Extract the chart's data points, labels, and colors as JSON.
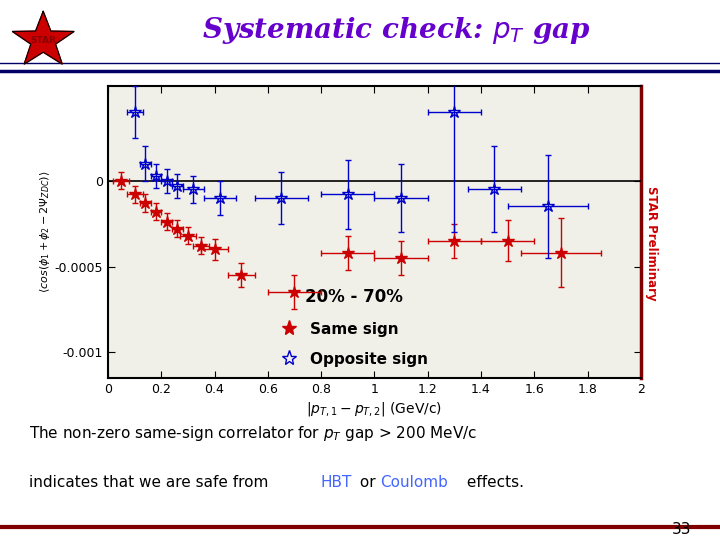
{
  "title": "Systematic check: $p_T$ gap",
  "xlabel": "$|p_{T,1} - p_{T,2}|$ (GeV/c)",
  "ylabel": "$\\langle cos(\\phi_1 + \\phi_2 - 2\\Psi_{ZDC}) \\rangle$",
  "xlim": [
    0,
    2.0
  ],
  "ylim": [
    -0.00115,
    0.00055
  ],
  "xticks": [
    0,
    0.2,
    0.4,
    0.6,
    0.8,
    1.0,
    1.2,
    1.4,
    1.6,
    1.8,
    2.0
  ],
  "same_sign_x": [
    0.05,
    0.1,
    0.14,
    0.18,
    0.22,
    0.26,
    0.3,
    0.35,
    0.4,
    0.5,
    0.7,
    0.9,
    1.1,
    1.3,
    1.5,
    1.7
  ],
  "same_sign_y": [
    0.0,
    -8e-05,
    -0.00013,
    -0.00018,
    -0.00024,
    -0.00028,
    -0.00032,
    -0.00038,
    -0.0004,
    -0.00055,
    -0.00065,
    -0.00042,
    -0.00045,
    -0.00035,
    -0.00035,
    -0.00042
  ],
  "same_sign_xerr": [
    0.03,
    0.03,
    0.02,
    0.02,
    0.02,
    0.02,
    0.03,
    0.03,
    0.05,
    0.05,
    0.1,
    0.1,
    0.1,
    0.1,
    0.1,
    0.15
  ],
  "same_sign_yerr": [
    5e-05,
    5e-05,
    5e-05,
    5e-05,
    5e-05,
    5e-05,
    5e-05,
    5e-05,
    6e-05,
    7e-05,
    0.0001,
    0.0001,
    0.0001,
    0.0001,
    0.00012,
    0.0002
  ],
  "opp_sign_x": [
    0.1,
    0.14,
    0.18,
    0.22,
    0.26,
    0.32,
    0.42,
    0.65,
    0.9,
    1.1,
    1.3,
    1.45,
    1.65
  ],
  "opp_sign_y": [
    0.0004,
    0.0001,
    3e-05,
    0.0,
    -3e-05,
    -5e-05,
    -0.0001,
    -0.0001,
    -8e-05,
    -0.0001,
    0.0004,
    -5e-05,
    -0.00015
  ],
  "opp_sign_xerr": [
    0.03,
    0.02,
    0.02,
    0.02,
    0.02,
    0.04,
    0.06,
    0.1,
    0.1,
    0.1,
    0.1,
    0.1,
    0.15
  ],
  "opp_sign_yerr": [
    0.00015,
    0.0001,
    7e-05,
    7e-05,
    7e-05,
    8e-05,
    0.0001,
    0.00015,
    0.0002,
    0.0002,
    0.0007,
    0.00025,
    0.0003
  ],
  "same_sign_color": "#cc0000",
  "opp_sign_color": "#0000cc",
  "preliminary_color": "#cc0000",
  "bg_color": "#ffffff",
  "plot_bg": "#f0f0e8",
  "title_color": "#6600cc",
  "border_color": "#800000",
  "page_number": "33",
  "centrality_label": "20% - 70%"
}
